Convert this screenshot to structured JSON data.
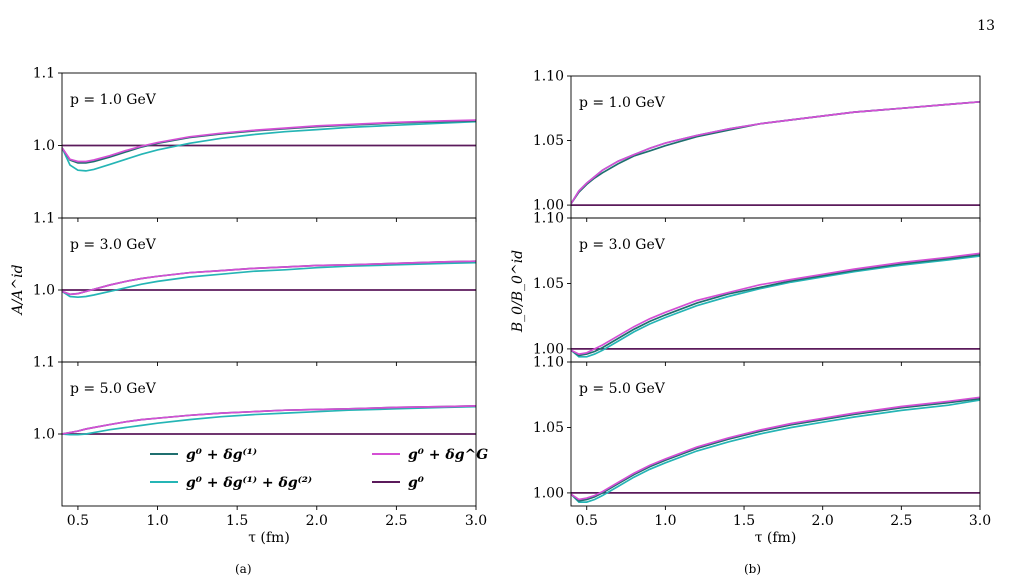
{
  "page_number": "13",
  "captions": {
    "a": "(a)",
    "b": "(b)"
  },
  "legend": [
    {
      "label": "g⁰ + δg⁽¹⁾",
      "color": "#1f6f6f"
    },
    {
      "label": "g⁰ + δg⁽¹⁾ + δg⁽²⁾",
      "color": "#25b5b5"
    },
    {
      "label": "g⁰ + δg^G",
      "color": "#d44fd4"
    },
    {
      "label": "g⁰",
      "color": "#5b1a5b"
    }
  ],
  "chart_data": [
    {
      "type": "line",
      "panel": "a",
      "ylabel": "A/A^id",
      "xlabel": "τ (fm)",
      "xlim": [
        0.4,
        3.0
      ],
      "x_ticks": [
        "0.5",
        "1.0",
        "1.5",
        "2.0",
        "2.5",
        "3.0"
      ],
      "x_tick_values": [
        0.5,
        1.0,
        1.5,
        2.0,
        2.5,
        3.0
      ],
      "subplots": [
        {
          "annotation": "p = 1.0 GeV",
          "ylim": [
            0.9,
            1.1
          ],
          "y_ticks": [
            "1.0",
            "1.1"
          ],
          "y_tick_values": [
            1.0,
            1.1
          ],
          "x": [
            0.4,
            0.45,
            0.5,
            0.55,
            0.6,
            0.7,
            0.8,
            0.9,
            1.0,
            1.2,
            1.4,
            1.6,
            1.8,
            2.0,
            2.2,
            2.5,
            2.8,
            3.0
          ],
          "series": [
            {
              "legend_index": 0,
              "values": [
                0.997,
                0.98,
                0.976,
                0.976,
                0.978,
                0.984,
                0.991,
                0.998,
                1.003,
                1.011,
                1.016,
                1.02,
                1.023,
                1.026,
                1.028,
                1.031,
                1.033,
                1.034
              ]
            },
            {
              "legend_index": 1,
              "values": [
                0.997,
                0.973,
                0.966,
                0.965,
                0.967,
                0.974,
                0.981,
                0.988,
                0.994,
                1.003,
                1.01,
                1.015,
                1.019,
                1.022,
                1.025,
                1.028,
                1.031,
                1.033
              ]
            },
            {
              "legend_index": 2,
              "values": [
                0.997,
                0.981,
                0.978,
                0.978,
                0.98,
                0.986,
                0.993,
                0.999,
                1.004,
                1.012,
                1.017,
                1.021,
                1.024,
                1.027,
                1.029,
                1.032,
                1.034,
                1.035
              ]
            },
            {
              "legend_index": 3,
              "values": [
                1.0,
                1.0,
                1.0,
                1.0,
                1.0,
                1.0,
                1.0,
                1.0,
                1.0,
                1.0,
                1.0,
                1.0,
                1.0,
                1.0,
                1.0,
                1.0,
                1.0,
                1.0
              ]
            }
          ]
        },
        {
          "annotation": "p = 3.0 GeV",
          "ylim": [
            0.9,
            1.1
          ],
          "y_ticks": [
            "1.0",
            "1.1"
          ],
          "y_tick_values": [
            1.0,
            1.1
          ],
          "x": [
            0.4,
            0.45,
            0.5,
            0.55,
            0.6,
            0.7,
            0.8,
            0.9,
            1.0,
            1.2,
            1.4,
            1.6,
            1.8,
            2.0,
            2.2,
            2.5,
            2.8,
            3.0
          ],
          "series": [
            {
              "legend_index": 0,
              "values": [
                0.998,
                0.994,
                0.995,
                0.998,
                1.001,
                1.007,
                1.012,
                1.016,
                1.019,
                1.024,
                1.027,
                1.03,
                1.032,
                1.034,
                1.035,
                1.037,
                1.039,
                1.04
              ]
            },
            {
              "legend_index": 1,
              "values": [
                0.998,
                0.991,
                0.99,
                0.991,
                0.993,
                0.998,
                1.003,
                1.008,
                1.012,
                1.018,
                1.022,
                1.026,
                1.028,
                1.031,
                1.033,
                1.035,
                1.037,
                1.038
              ]
            },
            {
              "legend_index": 2,
              "values": [
                0.998,
                0.994,
                0.995,
                0.998,
                1.001,
                1.007,
                1.012,
                1.016,
                1.019,
                1.024,
                1.027,
                1.03,
                1.032,
                1.034,
                1.035,
                1.037,
                1.039,
                1.04
              ]
            },
            {
              "legend_index": 3,
              "values": [
                1.0,
                1.0,
                1.0,
                1.0,
                1.0,
                1.0,
                1.0,
                1.0,
                1.0,
                1.0,
                1.0,
                1.0,
                1.0,
                1.0,
                1.0,
                1.0,
                1.0,
                1.0
              ]
            }
          ]
        },
        {
          "annotation": "p = 5.0 GeV",
          "ylim": [
            0.9,
            1.1
          ],
          "y_ticks": [
            "1.0",
            "1.1"
          ],
          "y_tick_values": [
            1.0,
            1.1
          ],
          "x": [
            0.4,
            0.45,
            0.5,
            0.55,
            0.6,
            0.7,
            0.8,
            0.9,
            1.0,
            1.2,
            1.4,
            1.6,
            1.8,
            2.0,
            2.2,
            2.5,
            2.8,
            3.0
          ],
          "series": [
            {
              "legend_index": 0,
              "values": [
                1.0,
                1.002,
                1.004,
                1.007,
                1.009,
                1.013,
                1.017,
                1.02,
                1.022,
                1.026,
                1.029,
                1.031,
                1.033,
                1.034,
                1.035,
                1.037,
                1.038,
                1.039
              ]
            },
            {
              "legend_index": 1,
              "values": [
                1.0,
                0.999,
                0.999,
                1.0,
                1.002,
                1.006,
                1.009,
                1.012,
                1.015,
                1.02,
                1.024,
                1.027,
                1.029,
                1.031,
                1.033,
                1.035,
                1.037,
                1.038
              ]
            },
            {
              "legend_index": 2,
              "values": [
                1.0,
                1.002,
                1.004,
                1.007,
                1.009,
                1.013,
                1.017,
                1.02,
                1.022,
                1.026,
                1.029,
                1.031,
                1.033,
                1.034,
                1.035,
                1.037,
                1.038,
                1.039
              ]
            },
            {
              "legend_index": 3,
              "values": [
                1.0,
                1.0,
                1.0,
                1.0,
                1.0,
                1.0,
                1.0,
                1.0,
                1.0,
                1.0,
                1.0,
                1.0,
                1.0,
                1.0,
                1.0,
                1.0,
                1.0,
                1.0
              ]
            }
          ]
        }
      ]
    },
    {
      "type": "line",
      "panel": "b",
      "ylabel": "B_0/B_0^id",
      "xlabel": "τ (fm)",
      "xlim": [
        0.4,
        3.0
      ],
      "x_ticks": [
        "0.5",
        "1.0",
        "1.5",
        "2.0",
        "2.5",
        "3.0"
      ],
      "x_tick_values": [
        0.5,
        1.0,
        1.5,
        2.0,
        2.5,
        3.0
      ],
      "subplots": [
        {
          "annotation": "p = 1.0 GeV",
          "ylim": [
            0.99,
            1.1
          ],
          "y_ticks": [
            "1.00",
            "1.05",
            "1.10"
          ],
          "y_tick_values": [
            1.0,
            1.05,
            1.1
          ],
          "x": [
            0.4,
            0.45,
            0.5,
            0.55,
            0.6,
            0.7,
            0.8,
            0.9,
            1.0,
            1.2,
            1.4,
            1.6,
            1.8,
            2.0,
            2.2,
            2.5,
            2.8,
            3.0
          ],
          "series": [
            {
              "legend_index": 0,
              "values": [
                1.001,
                1.01,
                1.016,
                1.021,
                1.025,
                1.032,
                1.038,
                1.042,
                1.046,
                1.053,
                1.058,
                1.063,
                1.066,
                1.069,
                1.072,
                1.075,
                1.078,
                1.08
              ]
            },
            {
              "legend_index": 1,
              "values": [
                1.001,
                1.011,
                1.017,
                1.022,
                1.027,
                1.034,
                1.039,
                1.044,
                1.048,
                1.054,
                1.059,
                1.063,
                1.066,
                1.069,
                1.072,
                1.075,
                1.078,
                1.08
              ]
            },
            {
              "legend_index": 2,
              "values": [
                1.001,
                1.011,
                1.017,
                1.022,
                1.027,
                1.034,
                1.039,
                1.044,
                1.048,
                1.054,
                1.059,
                1.063,
                1.066,
                1.069,
                1.072,
                1.075,
                1.078,
                1.08
              ]
            },
            {
              "legend_index": 3,
              "values": [
                1.0,
                1.0,
                1.0,
                1.0,
                1.0,
                1.0,
                1.0,
                1.0,
                1.0,
                1.0,
                1.0,
                1.0,
                1.0,
                1.0,
                1.0,
                1.0,
                1.0,
                1.0
              ]
            }
          ]
        },
        {
          "annotation": "p = 3.0 GeV",
          "ylim": [
            0.99,
            1.1
          ],
          "y_ticks": [
            "1.00",
            "1.05",
            "1.10"
          ],
          "y_tick_values": [
            1.0,
            1.05,
            1.1
          ],
          "x": [
            0.4,
            0.45,
            0.5,
            0.55,
            0.6,
            0.7,
            0.8,
            0.9,
            1.0,
            1.2,
            1.4,
            1.6,
            1.8,
            2.0,
            2.2,
            2.5,
            2.8,
            3.0
          ],
          "series": [
            {
              "legend_index": 0,
              "values": [
                0.999,
                0.995,
                0.996,
                0.998,
                1.001,
                1.008,
                1.015,
                1.021,
                1.026,
                1.035,
                1.042,
                1.047,
                1.052,
                1.056,
                1.06,
                1.065,
                1.069,
                1.072
              ]
            },
            {
              "legend_index": 1,
              "values": [
                0.999,
                0.994,
                0.994,
                0.996,
                0.999,
                1.006,
                1.013,
                1.019,
                1.024,
                1.033,
                1.04,
                1.046,
                1.051,
                1.055,
                1.059,
                1.064,
                1.068,
                1.071
              ]
            },
            {
              "legend_index": 2,
              "values": [
                0.999,
                0.996,
                0.997,
                1.0,
                1.003,
                1.01,
                1.017,
                1.023,
                1.028,
                1.037,
                1.043,
                1.049,
                1.053,
                1.057,
                1.061,
                1.066,
                1.07,
                1.073
              ]
            },
            {
              "legend_index": 3,
              "values": [
                1.0,
                1.0,
                1.0,
                1.0,
                1.0,
                1.0,
                1.0,
                1.0,
                1.0,
                1.0,
                1.0,
                1.0,
                1.0,
                1.0,
                1.0,
                1.0,
                1.0,
                1.0
              ]
            }
          ]
        },
        {
          "annotation": "p = 5.0 GeV",
          "ylim": [
            0.99,
            1.1
          ],
          "y_ticks": [
            "1.00",
            "1.05",
            "1.10"
          ],
          "y_tick_values": [
            1.0,
            1.05,
            1.1
          ],
          "x": [
            0.4,
            0.45,
            0.5,
            0.55,
            0.6,
            0.7,
            0.8,
            0.9,
            1.0,
            1.2,
            1.4,
            1.6,
            1.8,
            2.0,
            2.2,
            2.5,
            2.8,
            3.0
          ],
          "series": [
            {
              "legend_index": 0,
              "values": [
                0.999,
                0.994,
                0.995,
                0.997,
                1.0,
                1.007,
                1.014,
                1.02,
                1.025,
                1.034,
                1.041,
                1.047,
                1.052,
                1.056,
                1.06,
                1.065,
                1.069,
                1.072
              ]
            },
            {
              "legend_index": 1,
              "values": [
                0.999,
                0.993,
                0.993,
                0.995,
                0.998,
                1.005,
                1.012,
                1.018,
                1.023,
                1.032,
                1.039,
                1.045,
                1.05,
                1.054,
                1.058,
                1.063,
                1.067,
                1.071
              ]
            },
            {
              "legend_index": 2,
              "values": [
                0.999,
                0.995,
                0.996,
                0.998,
                1.001,
                1.008,
                1.015,
                1.021,
                1.026,
                1.035,
                1.042,
                1.048,
                1.053,
                1.057,
                1.061,
                1.066,
                1.07,
                1.073
              ]
            },
            {
              "legend_index": 3,
              "values": [
                1.0,
                1.0,
                1.0,
                1.0,
                1.0,
                1.0,
                1.0,
                1.0,
                1.0,
                1.0,
                1.0,
                1.0,
                1.0,
                1.0,
                1.0,
                1.0,
                1.0,
                1.0
              ]
            }
          ]
        }
      ]
    }
  ]
}
